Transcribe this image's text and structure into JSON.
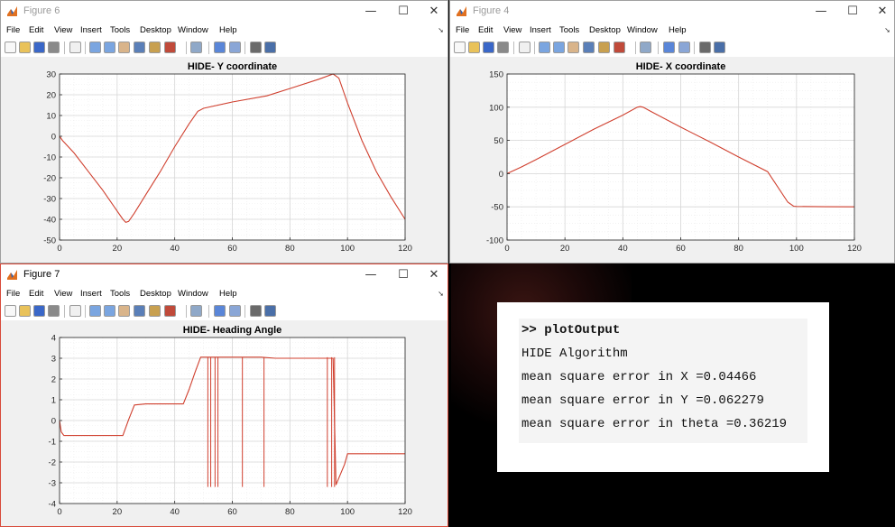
{
  "windows": {
    "fig6": {
      "title": "Figure 6",
      "controls": {
        "minimize": "—",
        "maximize": "☐",
        "close": "✕"
      },
      "plot_title": "HIDE- Y coordinate"
    },
    "fig4": {
      "title": "Figure 4",
      "controls": {
        "minimize": "—",
        "maximize": "☐",
        "close": "✕"
      },
      "plot_title": "HIDE- X coordinate"
    },
    "fig7": {
      "title": "Figure 7",
      "controls": {
        "minimize": "—",
        "maximize": "☐",
        "close": "✕"
      },
      "plot_title": "HIDE- Heading Angle"
    }
  },
  "menu": [
    "File",
    "Edit",
    "View",
    "Insert",
    "Tools",
    "Desktop",
    "Window",
    "Help"
  ],
  "toolbar_icons": [
    "new-file-icon",
    "open-folder-icon",
    "save-icon",
    "print-icon",
    "select-arrow-icon",
    "zoom-in-icon",
    "zoom-out-icon",
    "pan-hand-icon",
    "rotate-3d-icon",
    "data-cursor-icon",
    "brush-icon",
    "link-plot-icon",
    "colorbar-icon",
    "legend-icon",
    "hide-plot-tools-icon",
    "show-plot-tools-icon"
  ],
  "console": {
    "lines": [
      ">> plotOutput",
      "HIDE Algorithm",
      "mean square error in X =0.04466",
      "mean square error in Y =0.062279",
      "mean square error in theta =0.36219"
    ]
  },
  "chart_data": [
    {
      "type": "line",
      "title": "HIDE- Y coordinate",
      "xlabel": "",
      "ylabel": "",
      "xlim": [
        0,
        120
      ],
      "ylim": [
        -50,
        30
      ],
      "xticks": [
        0,
        20,
        40,
        60,
        80,
        100,
        120
      ],
      "yticks": [
        -50,
        -40,
        -30,
        -20,
        -10,
        0,
        10,
        20,
        30
      ],
      "grid": true,
      "color": "#d0402f",
      "x": [
        0,
        1,
        5,
        10,
        15,
        20,
        22,
        23,
        24,
        26,
        30,
        35,
        40,
        45,
        48,
        50,
        60,
        72,
        80,
        90,
        95,
        97,
        100,
        105,
        110,
        115,
        120
      ],
      "y": [
        0,
        -2,
        -8,
        -17,
        -26,
        -36,
        -40,
        -41.5,
        -41,
        -37,
        -28,
        -17,
        -5,
        6,
        12,
        13.5,
        16.5,
        19.5,
        23,
        27.5,
        30,
        28,
        16,
        -2,
        -17,
        -29,
        -40
      ]
    },
    {
      "type": "line",
      "title": "HIDE- X coordinate",
      "xlabel": "",
      "ylabel": "",
      "xlim": [
        0,
        120
      ],
      "ylim": [
        -100,
        150
      ],
      "xticks": [
        0,
        20,
        40,
        60,
        80,
        100,
        120
      ],
      "yticks": [
        -100,
        -50,
        0,
        50,
        100,
        150
      ],
      "grid": true,
      "color": "#d0402f",
      "x": [
        0,
        5,
        10,
        20,
        30,
        40,
        45,
        46,
        47,
        50,
        60,
        70,
        80,
        90,
        97,
        99,
        100,
        110,
        120
      ],
      "y": [
        0,
        10,
        21,
        44,
        67,
        88,
        100,
        101,
        100,
        93,
        70,
        48,
        25,
        3,
        -43,
        -49,
        -49.5,
        -49.8,
        -50
      ]
    },
    {
      "type": "line",
      "title": "HIDE- Heading Angle",
      "xlabel": "",
      "ylabel": "",
      "xlim": [
        0,
        120
      ],
      "ylim": [
        -4,
        4
      ],
      "xticks": [
        0,
        20,
        40,
        60,
        80,
        100,
        120
      ],
      "yticks": [
        -4,
        -3,
        -2,
        -1,
        0,
        1,
        2,
        3,
        4
      ],
      "grid": true,
      "color": "#d0402f",
      "x": [
        0,
        0.6,
        1.5,
        5,
        10,
        15,
        20,
        22,
        24,
        26,
        30,
        35,
        40,
        43,
        45,
        47,
        49,
        50,
        55,
        60,
        65,
        70,
        75,
        80,
        85,
        90,
        95,
        96,
        99,
        100,
        105,
        110,
        115,
        120
      ],
      "y": [
        0,
        -0.55,
        -0.72,
        -0.72,
        -0.72,
        -0.72,
        -0.72,
        -0.72,
        0.05,
        0.75,
        0.8,
        0.8,
        0.8,
        0.8,
        1.5,
        2.3,
        3.05,
        3.05,
        3.05,
        3.05,
        3.05,
        3.05,
        3.0,
        3.0,
        3.0,
        3.0,
        3.0,
        -3.1,
        -2.1,
        -1.6,
        -1.6,
        -1.6,
        -1.6,
        -1.6
      ],
      "spikes_x": [
        51.5,
        52.5,
        54,
        55,
        63.5,
        71,
        93,
        94.5,
        95.5
      ],
      "spike_low": -3.2
    }
  ]
}
